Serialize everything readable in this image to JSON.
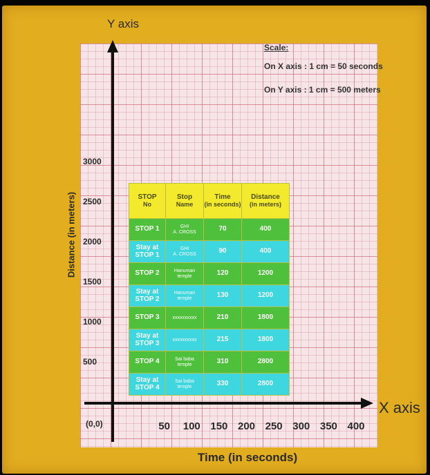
{
  "chart_data": {
    "type": "table",
    "title": "",
    "xlabel": "Time (in seconds)",
    "ylabel": "Distance (in meters)",
    "x_axis_name": "X axis",
    "y_axis_name": "Y axis",
    "origin_label": "(0,0)",
    "x_ticks": [
      "50",
      "100",
      "150",
      "200",
      "250",
      "300",
      "350",
      "400"
    ],
    "y_ticks": [
      "500",
      "1000",
      "1500",
      "2000",
      "2500",
      "3000"
    ],
    "xlim": [
      0,
      400
    ],
    "ylim": [
      0,
      3000
    ],
    "grid": true,
    "scale": {
      "title": "Scale:",
      "x": "On X axis : 1 cm = 50 seconds",
      "y": "On Y axis : 1 cm = 500 meters"
    },
    "table": {
      "headers": [
        {
          "main": "STOP",
          "sub": "No"
        },
        {
          "main": "Stop",
          "sub": "Name"
        },
        {
          "main": "Time",
          "sub": "(in seconds)"
        },
        {
          "main": "Distance",
          "sub": "(in meters)"
        }
      ],
      "rows": [
        {
          "kind": "stop",
          "stop": "STOP 1",
          "name": "GHI\nA. CROSS",
          "time": "70",
          "distance": "400"
        },
        {
          "kind": "stay",
          "stop": "Stay at\nSTOP 1",
          "name": "GHI\nA. CROSS",
          "time": "90",
          "distance": "400"
        },
        {
          "kind": "stop",
          "stop": "STOP 2",
          "name": "Hanuman\ntemple",
          "time": "120",
          "distance": "1200"
        },
        {
          "kind": "stay",
          "stop": "Stay at\nSTOP 2",
          "name": "Hanuman\ntemple",
          "time": "130",
          "distance": "1200"
        },
        {
          "kind": "stop",
          "stop": "STOP 3",
          "name": "xxxxxxxxxx",
          "time": "210",
          "distance": "1800"
        },
        {
          "kind": "stay",
          "stop": "Stay at\nSTOP 3",
          "name": "xxxxxxxxxx",
          "time": "215",
          "distance": "1800"
        },
        {
          "kind": "stop",
          "stop": "STOP 4",
          "name": "Sai baba\ntemple",
          "time": "310",
          "distance": "2800"
        },
        {
          "kind": "stay",
          "stop": "Stay at\nSTOP 4",
          "name": "Sai baba\ntemple",
          "time": "330",
          "distance": "2800"
        }
      ]
    }
  }
}
